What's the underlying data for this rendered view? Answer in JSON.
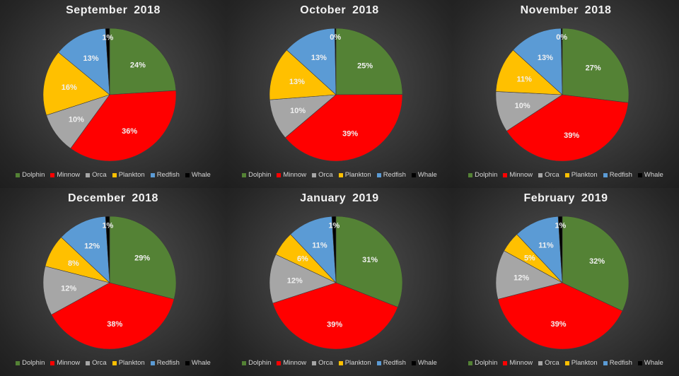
{
  "chart_data": [
    {
      "type": "pie",
      "title": "September 2018",
      "categories": [
        "Dolphin",
        "Minnow",
        "Orca",
        "Plankton",
        "Redfish",
        "Whale"
      ],
      "values": [
        24,
        36,
        10,
        16,
        13,
        1
      ],
      "data_labels": [
        "24%",
        "36%",
        "10%",
        "16%",
        "13%",
        "1%"
      ],
      "legend": "bottom"
    },
    {
      "type": "pie",
      "title": "October 2018",
      "categories": [
        "Dolphin",
        "Minnow",
        "Orca",
        "Plankton",
        "Redfish",
        "Whale"
      ],
      "values": [
        25,
        39,
        10,
        13,
        13,
        0.3
      ],
      "data_labels": [
        "25%",
        "39%",
        "10%",
        "13%",
        "13%",
        "0%"
      ],
      "legend": "bottom"
    },
    {
      "type": "pie",
      "title": "November 2018",
      "categories": [
        "Dolphin",
        "Minnow",
        "Orca",
        "Plankton",
        "Redfish",
        "Whale"
      ],
      "values": [
        27,
        39,
        10,
        11,
        13,
        0.3
      ],
      "data_labels": [
        "27%",
        "39%",
        "10%",
        "11%",
        "13%",
        "0%"
      ],
      "legend": "bottom"
    },
    {
      "type": "pie",
      "title": "December 2018",
      "categories": [
        "Dolphin",
        "Minnow",
        "Orca",
        "Plankton",
        "Redfish",
        "Whale"
      ],
      "values": [
        29,
        38,
        12,
        8,
        12,
        1
      ],
      "data_labels": [
        "29%",
        "38%",
        "12%",
        "8%",
        "12%",
        "1%"
      ],
      "legend": "bottom"
    },
    {
      "type": "pie",
      "title": "January 2019",
      "categories": [
        "Dolphin",
        "Minnow",
        "Orca",
        "Plankton",
        "Redfish",
        "Whale"
      ],
      "values": [
        31,
        39,
        12,
        6,
        11,
        1
      ],
      "data_labels": [
        "31%",
        "39%",
        "12%",
        "6%",
        "11%",
        "1%"
      ],
      "legend": "bottom"
    },
    {
      "type": "pie",
      "title": "February 2019",
      "categories": [
        "Dolphin",
        "Minnow",
        "Orca",
        "Plankton",
        "Redfish",
        "Whale"
      ],
      "values": [
        32,
        39,
        12,
        5,
        11,
        1
      ],
      "data_labels": [
        "32%",
        "39%",
        "12%",
        "5%",
        "11%",
        "1%"
      ],
      "legend": "bottom"
    }
  ],
  "colors": {
    "Dolphin": "#548235",
    "Minnow": "#ff0000",
    "Orca": "#a6a6a6",
    "Plankton": "#ffc000",
    "Redfish": "#5b9bd5",
    "Whale": "#000000"
  }
}
